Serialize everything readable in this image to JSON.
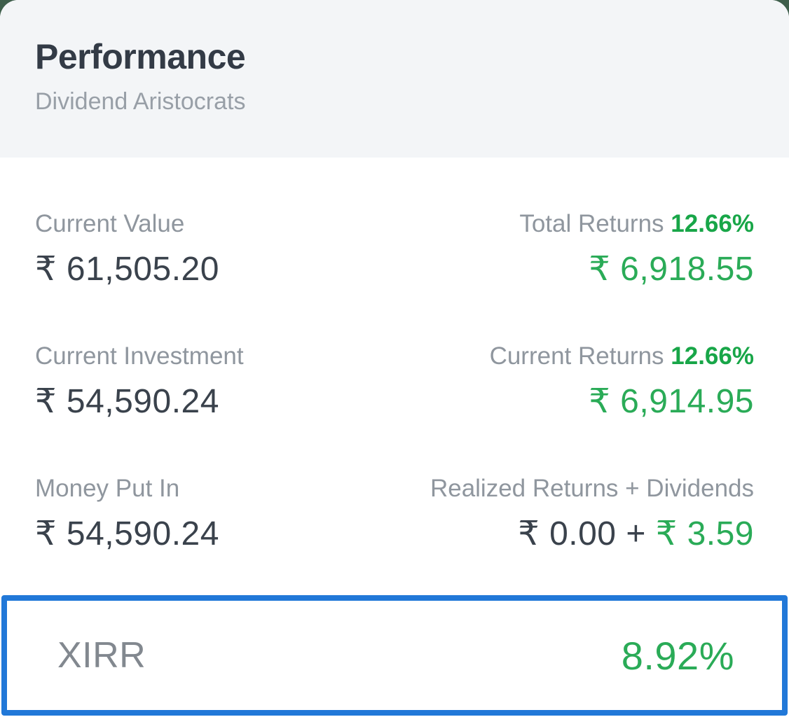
{
  "header": {
    "title": "Performance",
    "subtitle": "Dividend Aristocrats"
  },
  "rows": [
    {
      "left": {
        "label": "Current Value",
        "value": "₹ 61,505.20"
      },
      "right": {
        "label": "Total Returns ",
        "badge": "12.66%",
        "value": "₹ 6,918.55"
      }
    },
    {
      "left": {
        "label": "Current Investment",
        "value": "₹ 54,590.24"
      },
      "right": {
        "label": "Current Returns ",
        "badge": "12.66%",
        "value": "₹ 6,914.95"
      }
    },
    {
      "left": {
        "label": "Money Put In",
        "value": "₹ 54,590.24"
      },
      "right": {
        "label": "Realized Returns + Dividends",
        "value_plain": "₹ 0.00 + ",
        "value_green": "₹ 3.59"
      }
    }
  ],
  "xirr": {
    "label": "XIRR",
    "value": "8.92%"
  },
  "colors": {
    "accent_green": "#2aab57",
    "accent_green_bold": "#18a648",
    "highlight_border_blue": "#2178d8",
    "dark_text": "#3a424c",
    "muted_text": "#8f969e",
    "header_background": "#f3f5f7",
    "behind_card_green": "#3f5f4c"
  }
}
